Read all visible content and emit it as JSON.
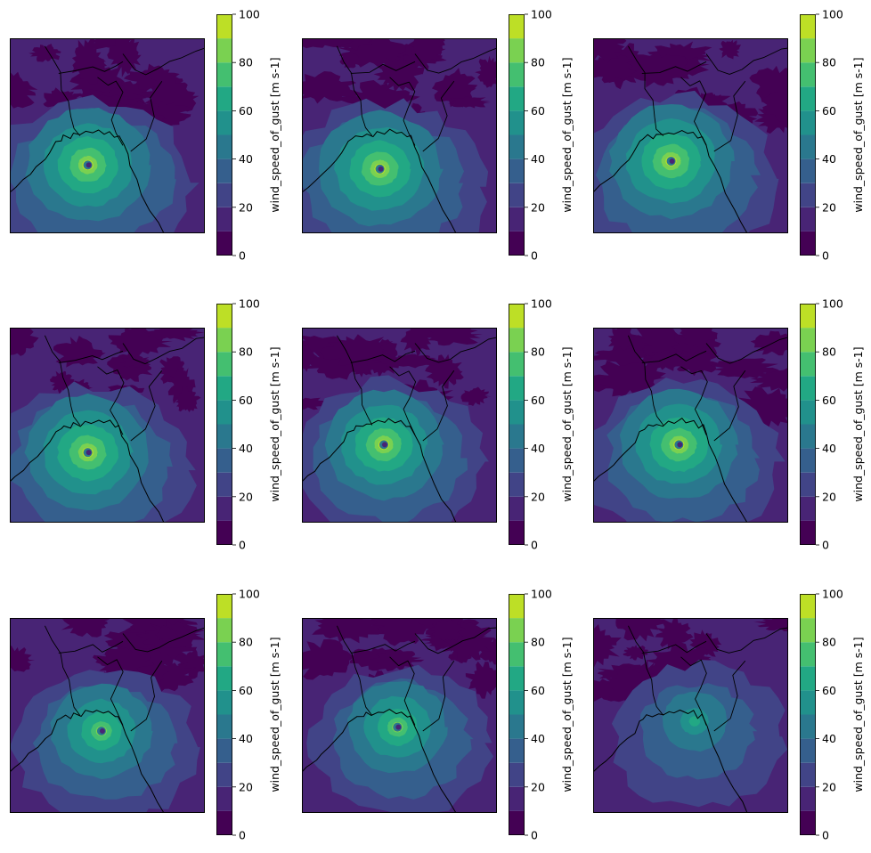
{
  "chart_data": {
    "type": "heatmap",
    "rows": 3,
    "cols": 3,
    "colorbar": {
      "label": "wind_speed_of_gust [m s-1]",
      "min": 0,
      "max": 100,
      "levels": [
        0,
        10,
        20,
        30,
        40,
        50,
        60,
        70,
        80,
        90,
        100
      ],
      "ticks": [
        "0",
        "20",
        "40",
        "60",
        "80",
        "100"
      ],
      "colors": [
        "#440154",
        "#482475",
        "#414487",
        "#355f8d",
        "#2a788e",
        "#21918c",
        "#22a884",
        "#44bf70",
        "#7ad151",
        "#bddf26",
        "#fde725"
      ]
    },
    "panels": [
      {
        "row": 0,
        "col": 0,
        "center": [
          0.4,
          0.65
        ],
        "peak_level": 9,
        "outer_scale": 1.0,
        "eye": true
      },
      {
        "row": 0,
        "col": 1,
        "center": [
          0.4,
          0.67
        ],
        "peak_level": 9,
        "outer_scale": 1.0,
        "eye": true
      },
      {
        "row": 0,
        "col": 2,
        "center": [
          0.4,
          0.63
        ],
        "peak_level": 9,
        "outer_scale": 1.0,
        "eye": true
      },
      {
        "row": 1,
        "col": 0,
        "center": [
          0.4,
          0.64
        ],
        "peak_level": 9,
        "outer_scale": 1.0,
        "eye": true
      },
      {
        "row": 1,
        "col": 1,
        "center": [
          0.42,
          0.6
        ],
        "peak_level": 9,
        "outer_scale": 0.95,
        "eye": true
      },
      {
        "row": 1,
        "col": 2,
        "center": [
          0.44,
          0.6
        ],
        "peak_level": 9,
        "outer_scale": 0.95,
        "eye": true
      },
      {
        "row": 2,
        "col": 0,
        "center": [
          0.47,
          0.58
        ],
        "peak_level": 8,
        "outer_scale": 0.9,
        "eye": true
      },
      {
        "row": 2,
        "col": 1,
        "center": [
          0.49,
          0.56
        ],
        "peak_level": 8,
        "outer_scale": 0.88,
        "eye": true
      },
      {
        "row": 2,
        "col": 2,
        "center": [
          0.52,
          0.53
        ],
        "peak_level": 6,
        "outer_scale": 0.85,
        "eye": false
      }
    ]
  }
}
